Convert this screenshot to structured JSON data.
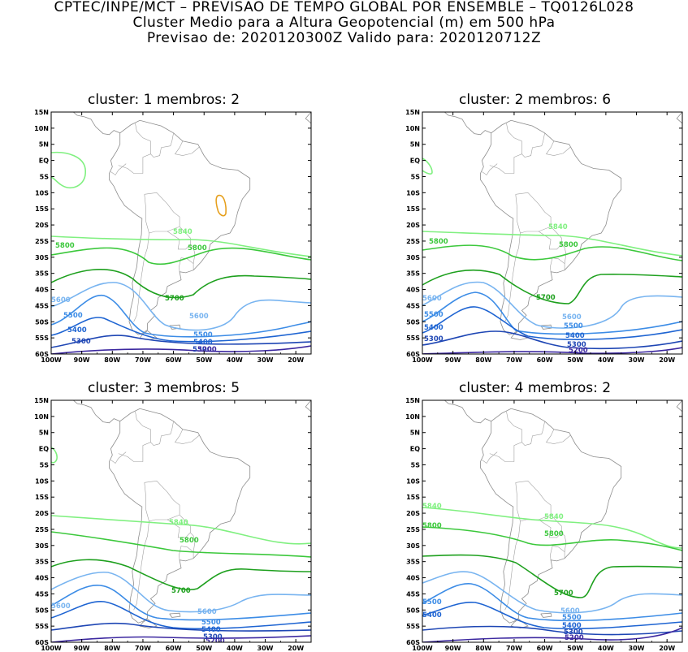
{
  "header": {
    "line1": "CPTEC/INPE/MCT – PREVISAO DE TEMPO GLOBAL POR ENSEMBLE – TQ0126L028",
    "line2": "Cluster Medio para a Altura Geopotencial (m) em 500 hPa",
    "line3": "Previsao de: 2020120300Z    Valido para: 2020120712Z"
  },
  "axes": {
    "lat_labels": [
      "15N",
      "10N",
      "5N",
      "EQ",
      "5S",
      "10S",
      "15S",
      "20S",
      "25S",
      "30S",
      "35S",
      "40S",
      "45S",
      "50S",
      "55S",
      "60S"
    ],
    "lon_labels": [
      "100W",
      "90W",
      "80W",
      "70W",
      "60W",
      "50W",
      "40W",
      "30W",
      "20W"
    ]
  },
  "contour_colors": {
    "5840": "#80f080",
    "5800": "#3cc83c",
    "5700": "#1ea01e",
    "5600": "#78b4f0",
    "5500": "#3c8ce6",
    "5400": "#1e64d2",
    "5300": "#1e46b4",
    "5200": "#3c28a0",
    "high": "#e6a01e"
  },
  "panels": [
    {
      "title": "cluster: 1   membros: 2",
      "labels": [
        {
          "text": "5840",
          "kind": "5840"
        },
        {
          "text": "5800",
          "kind": "5800"
        },
        {
          "text": "5800",
          "kind": "5800"
        },
        {
          "text": "5700",
          "kind": "5700"
        },
        {
          "text": "5600",
          "kind": "5600"
        },
        {
          "text": "5600",
          "kind": "5600"
        },
        {
          "text": "5500",
          "kind": "5500"
        },
        {
          "text": "5500",
          "kind": "5500"
        },
        {
          "text": "5400",
          "kind": "5400"
        },
        {
          "text": "5400",
          "kind": "5400"
        },
        {
          "text": "5300",
          "kind": "5300"
        },
        {
          "text": "5300",
          "kind": "5300"
        },
        {
          "text": "5200",
          "kind": "5200"
        }
      ]
    },
    {
      "title": "cluster: 2   membros: 6",
      "labels": [
        {
          "text": "5840",
          "kind": "5840"
        },
        {
          "text": "5800",
          "kind": "5800"
        },
        {
          "text": "5800",
          "kind": "5800"
        },
        {
          "text": "5700",
          "kind": "5700"
        },
        {
          "text": "5600",
          "kind": "5600"
        },
        {
          "text": "5600",
          "kind": "5600"
        },
        {
          "text": "5500",
          "kind": "5500"
        },
        {
          "text": "5500",
          "kind": "5500"
        },
        {
          "text": "5400",
          "kind": "5400"
        },
        {
          "text": "5400",
          "kind": "5400"
        },
        {
          "text": "5300",
          "kind": "5300"
        },
        {
          "text": "5300",
          "kind": "5300"
        },
        {
          "text": "5200",
          "kind": "5200"
        }
      ]
    },
    {
      "title": "cluster: 3   membros: 5",
      "labels": [
        {
          "text": "5840",
          "kind": "5840"
        },
        {
          "text": "5800",
          "kind": "5800"
        },
        {
          "text": "5700",
          "kind": "5700"
        },
        {
          "text": "5600",
          "kind": "5600"
        },
        {
          "text": "5600",
          "kind": "5600"
        },
        {
          "text": "5500",
          "kind": "5500"
        },
        {
          "text": "5400",
          "kind": "5400"
        },
        {
          "text": "5300",
          "kind": "5300"
        },
        {
          "text": "5200",
          "kind": "5200"
        }
      ]
    },
    {
      "title": "cluster: 4   membros: 2",
      "labels": [
        {
          "text": "5840",
          "kind": "5840"
        },
        {
          "text": "5840",
          "kind": "5840"
        },
        {
          "text": "5800",
          "kind": "5800"
        },
        {
          "text": "5800",
          "kind": "5800"
        },
        {
          "text": "5700",
          "kind": "5700"
        },
        {
          "text": "5600",
          "kind": "5600"
        },
        {
          "text": "5500",
          "kind": "5500"
        },
        {
          "text": "5500",
          "kind": "5500"
        },
        {
          "text": "5400",
          "kind": "5400"
        },
        {
          "text": "5400",
          "kind": "5400"
        },
        {
          "text": "5300",
          "kind": "5300"
        },
        {
          "text": "5200",
          "kind": "5200"
        }
      ]
    }
  ]
}
